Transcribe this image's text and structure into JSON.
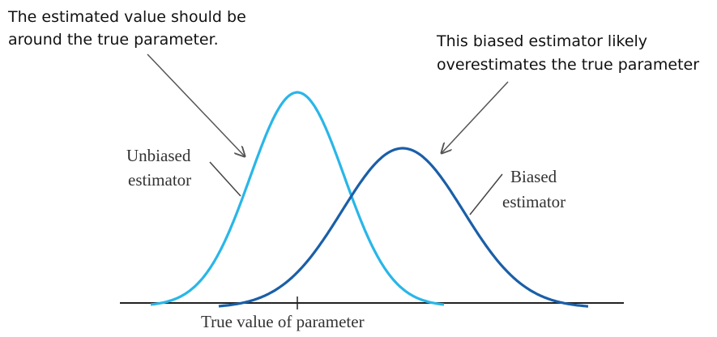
{
  "annotation_unbiased": {
    "line1": "The estimated value should be",
    "line2": "around the true parameter."
  },
  "annotation_biased": {
    "line1": "This biased estimator likely",
    "line2": "overestimates the true parameter"
  },
  "label_unbiased": {
    "line1": "Unbiased",
    "line2": "estimator"
  },
  "label_biased": {
    "line1": "Biased",
    "line2": "estimator"
  },
  "axis_label": "True value of parameter",
  "colors": {
    "unbiased_curve": "#29b6e8",
    "biased_curve": "#1a5fa8",
    "axis": "#222222",
    "arrow": "#555555",
    "leader": "#444444"
  }
}
